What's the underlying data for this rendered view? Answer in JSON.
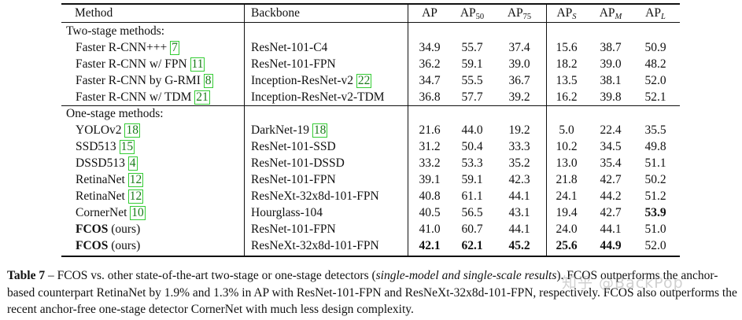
{
  "table": {
    "headers": {
      "method": "Method",
      "backbone": "Backbone",
      "ap": "AP",
      "ap50": {
        "base": "AP",
        "sub": "50"
      },
      "ap75": {
        "base": "AP",
        "sub": "75"
      },
      "aps": {
        "base": "AP",
        "sub": "S"
      },
      "apm": {
        "base": "AP",
        "sub": "M"
      },
      "apl": {
        "base": "AP",
        "sub": "L"
      }
    },
    "section_two_stage": "Two-stage methods:",
    "section_one_stage": "One-stage methods:",
    "rows": [
      {
        "method": "Faster R-CNN+++",
        "ref": "7",
        "backbone": "ResNet-101-C4",
        "backbone_ref": "",
        "v": [
          "34.9",
          "55.7",
          "37.4",
          "15.6",
          "38.7",
          "50.9"
        ]
      },
      {
        "method": "Faster R-CNN w/ FPN",
        "ref": "11",
        "backbone": "ResNet-101-FPN",
        "backbone_ref": "",
        "v": [
          "36.2",
          "59.1",
          "39.0",
          "18.2",
          "39.0",
          "48.2"
        ]
      },
      {
        "method": "Faster R-CNN by G-RMI",
        "ref": "8",
        "backbone": "Inception-ResNet-v2",
        "backbone_ref": "22",
        "v": [
          "34.7",
          "55.5",
          "36.7",
          "13.5",
          "38.1",
          "52.0"
        ]
      },
      {
        "method": "Faster R-CNN w/ TDM",
        "ref": "21",
        "backbone": "Inception-ResNet-v2-TDM",
        "backbone_ref": "",
        "v": [
          "36.8",
          "57.7",
          "39.2",
          "16.2",
          "39.8",
          "52.1"
        ]
      },
      {
        "method": "YOLOv2",
        "ref": "18",
        "backbone": "DarkNet-19",
        "backbone_ref": "18",
        "v": [
          "21.6",
          "44.0",
          "19.2",
          "5.0",
          "22.4",
          "35.5"
        ]
      },
      {
        "method": "SSD513",
        "ref": "15",
        "backbone": "ResNet-101-SSD",
        "backbone_ref": "",
        "v": [
          "31.2",
          "50.4",
          "33.3",
          "10.2",
          "34.5",
          "49.8"
        ]
      },
      {
        "method": "DSSD513",
        "ref": "4",
        "backbone": "ResNet-101-DSSD",
        "backbone_ref": "",
        "v": [
          "33.2",
          "53.3",
          "35.2",
          "13.0",
          "35.4",
          "51.1"
        ]
      },
      {
        "method": "RetinaNet",
        "ref": "12",
        "backbone": "ResNet-101-FPN",
        "backbone_ref": "",
        "v": [
          "39.1",
          "59.1",
          "42.3",
          "21.8",
          "42.7",
          "50.2"
        ]
      },
      {
        "method": "RetinaNet",
        "ref": "12",
        "backbone": "ResNeXt-32x8d-101-FPN",
        "backbone_ref": "",
        "v": [
          "40.8",
          "61.1",
          "44.1",
          "24.1",
          "44.2",
          "51.2"
        ]
      },
      {
        "method": "CornerNet",
        "ref": "10",
        "backbone": "Hourglass-104",
        "backbone_ref": "",
        "v": [
          "40.5",
          "56.5",
          "43.1",
          "19.4",
          "42.7",
          "53.9"
        ]
      },
      {
        "method": "FCOS",
        "method_suffix": " (ours)",
        "ref": "",
        "backbone": "ResNet-101-FPN",
        "backbone_ref": "",
        "v": [
          "41.0",
          "60.7",
          "44.1",
          "24.0",
          "44.1",
          "51.0"
        ]
      },
      {
        "method": "FCOS",
        "method_suffix": " (ours)",
        "ref": "",
        "backbone": "ResNeXt-32x8d-101-FPN",
        "backbone_ref": "",
        "v": [
          "42.1",
          "62.1",
          "45.2",
          "25.6",
          "44.9",
          "52.0"
        ]
      }
    ]
  },
  "caption": {
    "label": "Table 7",
    "dash": " – ",
    "text1": "FCOS vs. other state-of-the-art two-stage or one-stage detectors (",
    "italic": "single-model and single-scale results",
    "text2": "). FCOS outperforms the anchor-based counterpart RetinaNet by 1.9% and 1.3% in AP with ResNet-101-FPN and ResNeXt-32x8d-101-FPN, respectively. FCOS also outperforms the recent anchor-free one-stage detector CornerNet with much less design complexity."
  },
  "watermark": "知乎 @BackPop"
}
